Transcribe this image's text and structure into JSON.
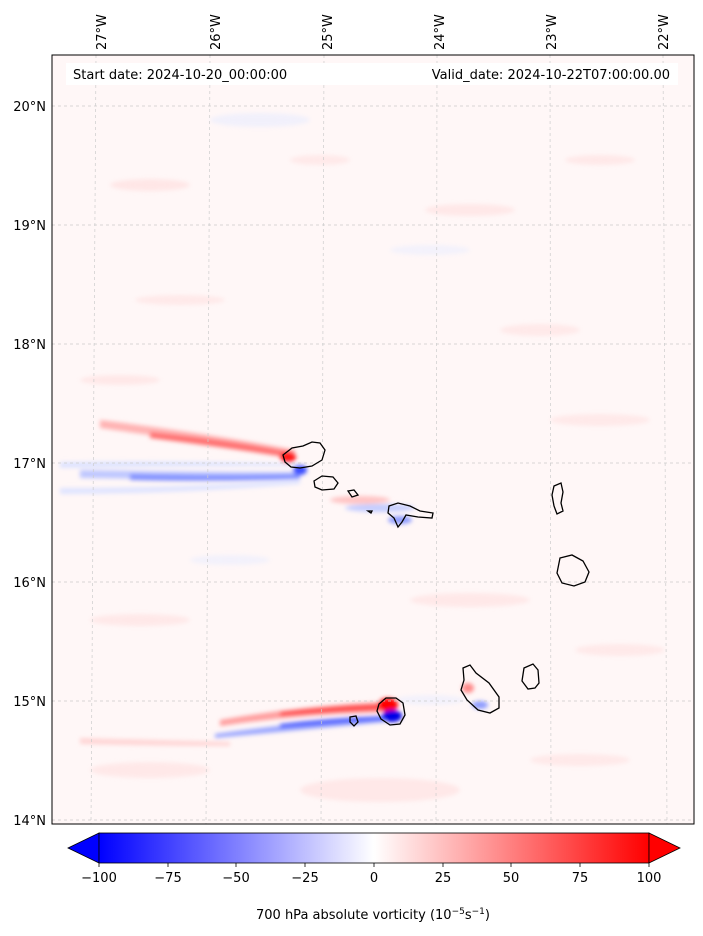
{
  "map": {
    "start_date_text": "Start date: 2024-10-20_00:00:00",
    "valid_date_text": "Valid_date: 2024-10-22T07:00:00.00",
    "longitude_labels": [
      "27°W",
      "26°W",
      "25°W",
      "24°W",
      "23°W",
      "22°W"
    ],
    "latitude_labels": [
      "20°N",
      "19°N",
      "18°N",
      "17°N",
      "16°N",
      "15°N",
      "14°N"
    ]
  },
  "colorbar": {
    "tick_labels": [
      "−100",
      "−75",
      "−50",
      "−25",
      "0",
      "25",
      "50",
      "75",
      "100"
    ],
    "label": "700 hPa absolute vorticity (10",
    "label_exp1": "−5",
    "label_mid": "s",
    "label_exp2": "−1",
    "label_end": ")",
    "min_color": "#0000ff",
    "mid_color": "#ffffff",
    "max_color": "#ff0000"
  }
}
